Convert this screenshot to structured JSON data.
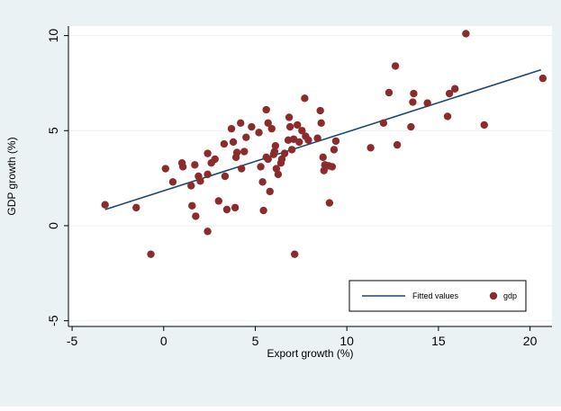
{
  "chart_data": {
    "type": "scatter",
    "xlabel": "Export growth (%)",
    "ylabel": "GDP growth (%)",
    "xlim": [
      -5.2,
      21.2
    ],
    "ylim": [
      -5.3,
      10.5
    ],
    "xticks": [
      -5,
      0,
      5,
      10,
      15,
      20
    ],
    "yticks": [
      -5,
      0,
      5,
      10
    ],
    "grid": "horizontal",
    "legend_position": "bottom-right",
    "colors": {
      "background": "#eaf2f3",
      "plot_area": "#ffffff",
      "marker": "#8b2b2b",
      "fit_line": "#1a476f",
      "gridline": "#eaf2f3"
    },
    "series": [
      {
        "name": "Fitted values",
        "kind": "line",
        "x": [
          -3.2,
          20.6
        ],
        "y": [
          0.85,
          8.2
        ]
      },
      {
        "name": "gdp",
        "kind": "scatter",
        "points": [
          [
            -3.2,
            1.1
          ],
          [
            -1.5,
            0.95
          ],
          [
            -0.7,
            -1.5
          ],
          [
            0.1,
            3.0
          ],
          [
            0.5,
            2.3
          ],
          [
            1.0,
            3.3
          ],
          [
            1.05,
            3.1
          ],
          [
            1.5,
            2.1
          ],
          [
            1.55,
            1.05
          ],
          [
            1.7,
            3.2
          ],
          [
            1.75,
            0.5
          ],
          [
            1.9,
            2.6
          ],
          [
            2.0,
            2.35
          ],
          [
            2.4,
            2.7
          ],
          [
            2.4,
            3.8
          ],
          [
            2.4,
            -0.3
          ],
          [
            2.6,
            3.3
          ],
          [
            2.8,
            3.5
          ],
          [
            3.0,
            1.3
          ],
          [
            3.3,
            4.3
          ],
          [
            3.35,
            2.6
          ],
          [
            3.45,
            0.85
          ],
          [
            3.7,
            5.1
          ],
          [
            3.8,
            4.4
          ],
          [
            3.9,
            0.95
          ],
          [
            3.95,
            3.6
          ],
          [
            4.0,
            3.85
          ],
          [
            4.2,
            5.4
          ],
          [
            4.25,
            3.0
          ],
          [
            4.4,
            3.9
          ],
          [
            4.5,
            4.65
          ],
          [
            4.8,
            5.2
          ],
          [
            5.2,
            4.9
          ],
          [
            5.3,
            3.1
          ],
          [
            5.4,
            2.3
          ],
          [
            5.45,
            0.8
          ],
          [
            5.6,
            3.6
          ],
          [
            5.6,
            6.1
          ],
          [
            5.7,
            3.5
          ],
          [
            5.7,
            5.4
          ],
          [
            5.8,
            1.8
          ],
          [
            5.9,
            5.1
          ],
          [
            6.0,
            3.75
          ],
          [
            6.05,
            3.9
          ],
          [
            6.1,
            4.2
          ],
          [
            6.15,
            3.0
          ],
          [
            6.25,
            2.7
          ],
          [
            6.4,
            3.3
          ],
          [
            6.45,
            3.5
          ],
          [
            6.6,
            3.8
          ],
          [
            6.8,
            4.5
          ],
          [
            6.85,
            5.7
          ],
          [
            6.9,
            5.2
          ],
          [
            7.0,
            4.0
          ],
          [
            7.1,
            4.55
          ],
          [
            7.15,
            -1.5
          ],
          [
            7.3,
            5.3
          ],
          [
            7.4,
            4.4
          ],
          [
            7.55,
            5.0
          ],
          [
            7.7,
            6.7
          ],
          [
            7.75,
            4.7
          ],
          [
            7.9,
            4.5
          ],
          [
            8.4,
            4.6
          ],
          [
            8.55,
            6.05
          ],
          [
            8.6,
            5.4
          ],
          [
            8.7,
            3.6
          ],
          [
            8.75,
            2.9
          ],
          [
            8.8,
            3.2
          ],
          [
            9.0,
            3.15
          ],
          [
            9.05,
            1.2
          ],
          [
            9.2,
            3.1
          ],
          [
            9.3,
            4.0
          ],
          [
            9.4,
            4.45
          ],
          [
            11.3,
            4.1
          ],
          [
            12.0,
            5.4
          ],
          [
            12.3,
            7.0
          ],
          [
            12.65,
            8.4
          ],
          [
            12.75,
            4.25
          ],
          [
            13.5,
            5.2
          ],
          [
            13.6,
            6.5
          ],
          [
            13.65,
            6.95
          ],
          [
            14.4,
            6.45
          ],
          [
            15.5,
            5.75
          ],
          [
            15.6,
            6.95
          ],
          [
            15.9,
            7.2
          ],
          [
            16.5,
            10.1
          ],
          [
            17.5,
            5.3
          ],
          [
            20.7,
            7.75
          ]
        ]
      }
    ]
  }
}
